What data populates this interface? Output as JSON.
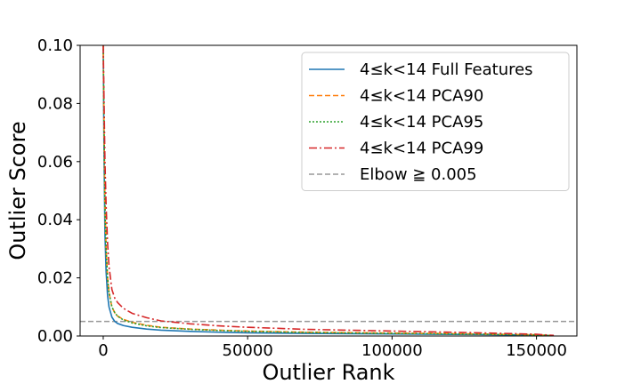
{
  "chart_data": {
    "type": "line",
    "xlabel": "Outlier Rank",
    "ylabel": "Outlier Score",
    "xlim": [
      -8000,
      164000
    ],
    "ylim": [
      0,
      0.1
    ],
    "xticks": [
      0,
      50000,
      100000,
      150000
    ],
    "xtick_labels": [
      "0",
      "50000",
      "100000",
      "150000"
    ],
    "yticks": [
      0.0,
      0.02,
      0.04,
      0.06,
      0.08,
      0.1
    ],
    "ytick_labels": [
      "0.00",
      "0.02",
      "0.04",
      "0.06",
      "0.08",
      "0.10"
    ],
    "grid": false,
    "legend_position": "top-right",
    "x": [
      0,
      300,
      600,
      1000,
      1500,
      2000,
      3000,
      4000,
      5000,
      7000,
      10000,
      15000,
      20000,
      30000,
      40000,
      50000,
      70000,
      100000,
      130000,
      150000,
      156000
    ],
    "series": [
      {
        "name": "4≤k<14 Full Features",
        "color": "#1f77b4",
        "style": "solid",
        "values": [
          0.1,
          0.06,
          0.035,
          0.022,
          0.014,
          0.01,
          0.0065,
          0.005,
          0.0043,
          0.0036,
          0.003,
          0.0024,
          0.002,
          0.0016,
          0.0013,
          0.0011,
          0.0009,
          0.0007,
          0.0005,
          0.0003,
          0.0001
        ]
      },
      {
        "name": "4≤k<14 PCA90",
        "color": "#ff7f0e",
        "style": "dashed",
        "values": [
          0.1,
          0.07,
          0.045,
          0.03,
          0.02,
          0.015,
          0.01,
          0.008,
          0.0068,
          0.0057,
          0.0047,
          0.0037,
          0.003,
          0.0024,
          0.002,
          0.0017,
          0.0013,
          0.001,
          0.0007,
          0.0004,
          0.0001
        ]
      },
      {
        "name": "4≤k<14 PCA95",
        "color": "#2ca02c",
        "style": "dotted",
        "values": [
          0.1,
          0.07,
          0.045,
          0.03,
          0.02,
          0.015,
          0.01,
          0.008,
          0.0068,
          0.0055,
          0.0045,
          0.0035,
          0.0029,
          0.0023,
          0.0019,
          0.0016,
          0.0012,
          0.0009,
          0.0006,
          0.0004,
          0.0001
        ]
      },
      {
        "name": "4≤k<14 PCA99",
        "color": "#d62728",
        "style": "dashdot",
        "values": [
          0.1,
          0.08,
          0.06,
          0.045,
          0.032,
          0.024,
          0.016,
          0.013,
          0.0115,
          0.0095,
          0.0078,
          0.0063,
          0.0052,
          0.0042,
          0.0035,
          0.003,
          0.0023,
          0.0017,
          0.0011,
          0.0006,
          0.0002
        ]
      }
    ],
    "reference_lines": [
      {
        "name": "Elbow ≧ 0.005",
        "y": 0.005,
        "color": "#999999",
        "style": "dashed"
      }
    ]
  }
}
